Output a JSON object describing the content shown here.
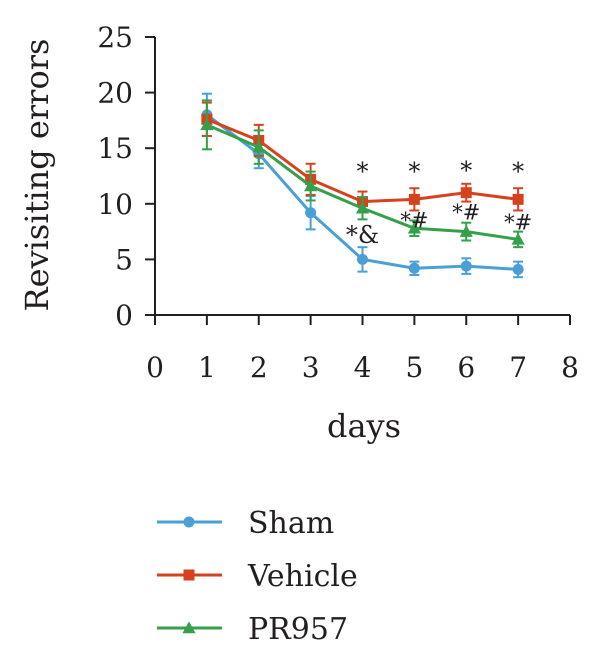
{
  "chart_data": {
    "type": "line",
    "title": "",
    "xlabel": "days",
    "ylabel": "Revisiting errors",
    "xlim": [
      0,
      8
    ],
    "ylim": [
      0,
      25
    ],
    "x_ticks": [
      "0",
      "1",
      "2",
      "3",
      "4",
      "5",
      "6",
      "7",
      "8"
    ],
    "y_ticks": [
      "0",
      "5",
      "10",
      "15",
      "20",
      "25"
    ],
    "x": [
      1,
      2,
      3,
      4,
      5,
      6,
      7
    ],
    "grid": false,
    "legend_position": "bottom",
    "series": [
      {
        "name": "Sham",
        "color": "#4a9fd5",
        "marker": "circle",
        "values": [
          18.0,
          14.5,
          9.2,
          5.0,
          4.2,
          4.4,
          4.1
        ],
        "errors": [
          1.9,
          1.3,
          1.5,
          1.1,
          0.6,
          0.7,
          0.7
        ]
      },
      {
        "name": "Vehicle",
        "color": "#d6421e",
        "marker": "square",
        "values": [
          17.6,
          15.7,
          12.2,
          10.2,
          10.4,
          11.0,
          10.4
        ],
        "errors": [
          1.5,
          1.4,
          1.4,
          0.9,
          1.0,
          0.8,
          1.0
        ]
      },
      {
        "name": "PR957",
        "color": "#35a04a",
        "marker": "triangle",
        "values": [
          17.1,
          15.1,
          11.6,
          9.6,
          7.8,
          7.5,
          6.8
        ],
        "errors": [
          2.2,
          1.5,
          1.3,
          1.0,
          0.7,
          0.8,
          0.7
        ]
      }
    ],
    "annotations": [
      {
        "text": "*",
        "x": 4,
        "y": 12.9,
        "size": "large"
      },
      {
        "text": "*",
        "x": 5,
        "y": 12.9,
        "size": "large"
      },
      {
        "text": "*",
        "x": 6,
        "y": 13.0,
        "size": "large"
      },
      {
        "text": "*",
        "x": 7,
        "y": 12.9,
        "size": "large"
      },
      {
        "text": "*&",
        "x": 4,
        "y": 7.2,
        "size": "large"
      },
      {
        "text": "*#",
        "x": 5,
        "y": 8.6,
        "size": "small"
      },
      {
        "text": "*#",
        "x": 6,
        "y": 9.3,
        "size": "small"
      },
      {
        "text": "*#",
        "x": 7,
        "y": 8.4,
        "size": "small"
      }
    ]
  }
}
